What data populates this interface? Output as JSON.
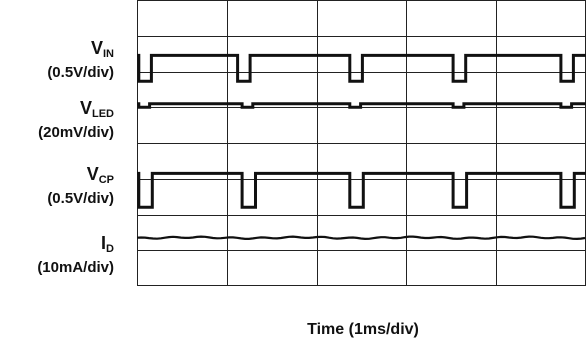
{
  "chart_data": {
    "type": "line",
    "title": "",
    "xlabel": "Time (1ms/div)",
    "x_divisions": 5,
    "y_divisions": 8,
    "grid": true,
    "channels": [
      {
        "name_main": "V",
        "name_sub": "IN",
        "scale": "(0.5V/div)",
        "color": "#111111",
        "shape": "pulse",
        "baseline_div": 1.55,
        "dip_depth_div": 0.72,
        "dip_times_div": [
          0.02,
          1.12,
          2.37,
          3.52,
          4.72
        ],
        "dip_width_div": 0.14
      },
      {
        "name_main": "V",
        "name_sub": "LED",
        "scale": "(20mV/div)",
        "color": "#111111",
        "shape": "pulse",
        "baseline_div": 2.9,
        "dip_depth_div": 0.1,
        "dip_times_div": [
          0.02,
          1.17,
          2.37,
          3.52,
          4.72
        ],
        "dip_width_div": 0.12
      },
      {
        "name_main": "V",
        "name_sub": "CP",
        "scale": "(0.5V/div)",
        "color": "#111111",
        "shape": "pulse",
        "baseline_div": 4.85,
        "dip_depth_div": 0.95,
        "dip_times_div": [
          0.02,
          1.17,
          2.37,
          3.52,
          4.72
        ],
        "dip_width_div": 0.15
      },
      {
        "name_main": "I",
        "name_sub": "D",
        "scale": "(10mA/div)",
        "color": "#111111",
        "shape": "flat",
        "baseline_div": 6.65
      }
    ]
  }
}
